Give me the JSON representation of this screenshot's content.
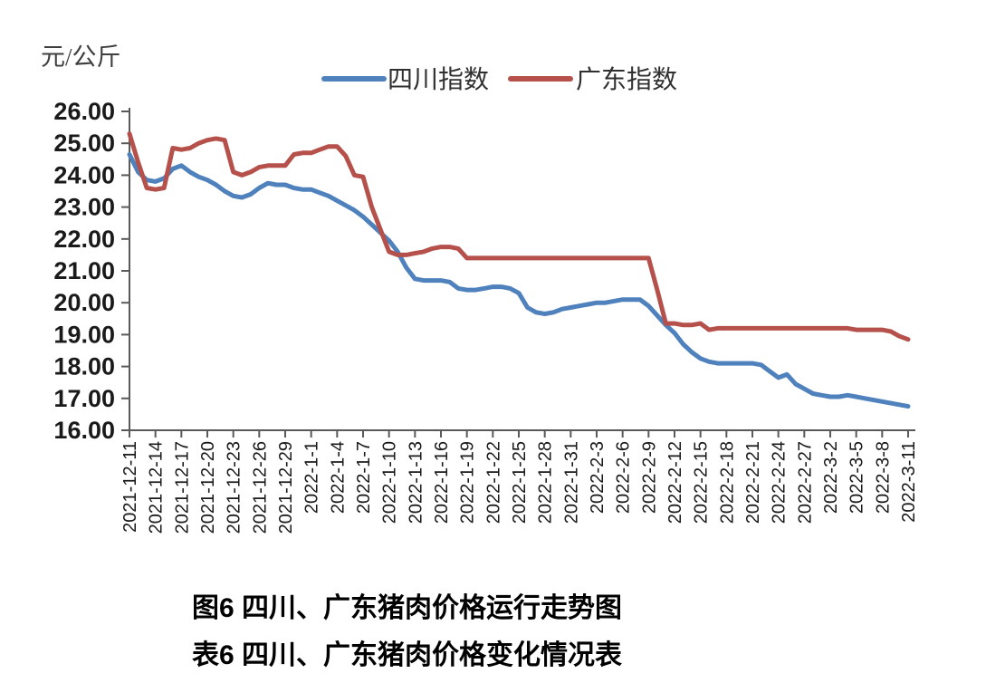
{
  "page": {
    "figure_caption": "图6 四川、广东猪肉价格运行走势图",
    "table_caption": "表6 四川、广东猪肉价格变化情况表"
  },
  "chart_data": {
    "type": "line",
    "title": "图6 四川、广东猪肉价格运行走势图",
    "unit_label": "元/公斤",
    "grid": false,
    "legend_position": "top",
    "y_axis": {
      "min": 16,
      "max": 26,
      "step": 1,
      "tick_labels": [
        "26.00",
        "25.00",
        "24.00",
        "23.00",
        "22.00",
        "21.00",
        "20.00",
        "19.00",
        "18.00",
        "17.00",
        "16.00"
      ]
    },
    "x_axis": {
      "tick_labels": [
        "2021-12-11",
        "2021-12-14",
        "2021-12-17",
        "2021-12-20",
        "2021-12-23",
        "2021-12-26",
        "2021-12-29",
        "2022-1-1",
        "2022-1-4",
        "2022-1-7",
        "2022-1-10",
        "2022-1-13",
        "2022-1-16",
        "2022-1-19",
        "2022-1-22",
        "2022-1-25",
        "2022-1-28",
        "2022-1-31",
        "2022-2-3",
        "2022-2-6",
        "2022-2-9",
        "2022-2-12",
        "2022-2-15",
        "2022-2-18",
        "2022-2-21",
        "2022-2-24",
        "2022-2-27",
        "2022-3-2",
        "2022-3-5",
        "2022-3-8",
        "2022-3-11"
      ],
      "points_per_tick": 3,
      "frequency": "daily"
    },
    "legend": [
      {
        "label": "四川指数",
        "color": "#4F81BD"
      },
      {
        "label": "广东指数",
        "color": "#B5504B"
      }
    ],
    "series": [
      {
        "name": "四川指数",
        "color": "#4F81BD",
        "values": [
          24.65,
          24.1,
          23.85,
          23.8,
          23.9,
          24.2,
          24.3,
          24.1,
          23.95,
          23.85,
          23.7,
          23.5,
          23.35,
          23.3,
          23.4,
          23.6,
          23.75,
          23.7,
          23.7,
          23.6,
          23.55,
          23.55,
          23.45,
          23.35,
          23.2,
          23.05,
          22.9,
          22.7,
          22.45,
          22.2,
          21.95,
          21.6,
          21.1,
          20.75,
          20.7,
          20.7,
          20.7,
          20.65,
          20.45,
          20.4,
          20.4,
          20.45,
          20.5,
          20.5,
          20.45,
          20.3,
          19.85,
          19.7,
          19.65,
          19.7,
          19.8,
          19.85,
          19.9,
          19.95,
          20.0,
          20.0,
          20.05,
          20.1,
          20.1,
          20.1,
          19.9,
          19.6,
          19.3,
          19.05,
          18.7,
          18.45,
          18.25,
          18.15,
          18.1,
          18.1,
          18.1,
          18.1,
          18.1,
          18.05,
          17.85,
          17.65,
          17.75,
          17.45,
          17.3,
          17.15,
          17.1,
          17.05,
          17.05,
          17.1,
          17.05,
          17.0,
          16.95,
          16.9,
          16.85,
          16.8,
          16.75
        ]
      },
      {
        "name": "广东指数",
        "color": "#B5504B",
        "values": [
          25.3,
          24.4,
          23.6,
          23.55,
          23.6,
          24.85,
          24.8,
          24.85,
          25.0,
          25.1,
          25.15,
          25.1,
          24.1,
          24.0,
          24.1,
          24.25,
          24.3,
          24.3,
          24.3,
          24.65,
          24.7,
          24.7,
          24.8,
          24.9,
          24.9,
          24.6,
          24.0,
          23.95,
          23.0,
          22.3,
          21.6,
          21.5,
          21.5,
          21.55,
          21.6,
          21.7,
          21.75,
          21.75,
          21.7,
          21.4,
          21.4,
          21.4,
          21.4,
          21.4,
          21.4,
          21.4,
          21.4,
          21.4,
          21.4,
          21.4,
          21.4,
          21.4,
          21.4,
          21.4,
          21.4,
          21.4,
          21.4,
          21.4,
          21.4,
          21.4,
          21.4,
          20.4,
          19.35,
          19.35,
          19.3,
          19.3,
          19.35,
          19.15,
          19.2,
          19.2,
          19.2,
          19.2,
          19.2,
          19.2,
          19.2,
          19.2,
          19.2,
          19.2,
          19.2,
          19.2,
          19.2,
          19.2,
          19.2,
          19.2,
          19.15,
          19.15,
          19.15,
          19.15,
          19.1,
          18.95,
          18.85
        ]
      }
    ]
  }
}
